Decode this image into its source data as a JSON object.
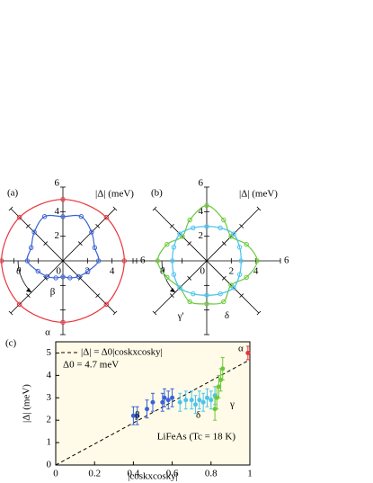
{
  "chart_data": [
    {
      "type": "polar",
      "panel_label": "(a)",
      "axis_label": "|Δ| (meV)",
      "theta_label": "θ",
      "rlim": [
        0,
        6
      ],
      "rticks": [
        0,
        2,
        4,
        6
      ],
      "series": [
        {
          "name": "α",
          "color": "#e8333a",
          "theta": [
            0,
            45,
            90,
            135,
            180,
            225,
            270,
            315
          ],
          "values": [
            5.0,
            5.0,
            5.0,
            5.0,
            5.0,
            5.0,
            5.0,
            5.0
          ]
        },
        {
          "name": "β",
          "color": "#3a62d6",
          "theta": [
            0,
            22.5,
            45,
            67.5,
            90,
            112.5,
            135,
            157.5,
            180,
            202.5,
            225,
            247.5,
            270,
            292.5,
            315,
            337.5
          ],
          "values": [
            2.9,
            2.8,
            3.3,
            3.9,
            3.6,
            3.9,
            3.3,
            2.8,
            2.9,
            2.2,
            1.8,
            1.5,
            1.3,
            1.5,
            1.8,
            2.2
          ]
        }
      ]
    },
    {
      "type": "polar",
      "panel_label": "(b)",
      "axis_label": "|Δ| (meV)",
      "theta_label": "θ",
      "rlim": [
        0,
        6
      ],
      "rticks": [
        0,
        2,
        4,
        6
      ],
      "series": [
        {
          "name": "γ'",
          "color": "#6cc93a",
          "theta": [
            0,
            22.5,
            45,
            67.5,
            90,
            112.5,
            135,
            157.5,
            180,
            202.5,
            225,
            247.5,
            270,
            292.5,
            315,
            337.5
          ],
          "values": [
            4.1,
            3.5,
            2.8,
            3.6,
            4.5,
            3.6,
            2.8,
            3.5,
            4.0,
            3.5,
            3.1,
            3.6,
            3.5,
            3.6,
            2.8,
            3.5
          ]
        },
        {
          "name": "δ",
          "color": "#4cc3ee",
          "theta": [
            0,
            22.5,
            45,
            67.5,
            90,
            112.5,
            135,
            157.5,
            180,
            202.5,
            225,
            247.5,
            270,
            292.5,
            315,
            337.5
          ],
          "values": [
            2.8,
            2.9,
            3.1,
            2.9,
            2.8,
            2.9,
            3.1,
            2.9,
            2.8,
            2.9,
            3.1,
            2.9,
            2.8,
            2.9,
            3.1,
            2.9
          ]
        }
      ]
    },
    {
      "type": "errorscatter",
      "panel_label": "(c)",
      "x_label": "|coskxcosky|",
      "y_label": "|Δ| (meV)",
      "annotation": "LiFeAs (Tc = 18 K)",
      "fit": {
        "label": "|Δ| = Δ0|coskxcosky|",
        "delta0": 4.7,
        "delta0_label": "Δ0 = 4.7 meV"
      },
      "xlim": [
        0,
        1
      ],
      "ylim": [
        0,
        5.5
      ],
      "xticks": [
        0,
        0.2,
        0.4,
        0.6,
        0.8,
        1
      ],
      "yticks": [
        0,
        1,
        2,
        3,
        4,
        5
      ],
      "series": [
        {
          "name": "β",
          "color": "#3a62d6",
          "x": [
            0.4,
            0.42,
            0.47,
            0.5,
            0.55,
            0.56,
            0.58,
            0.6
          ],
          "values": [
            2.2,
            2.2,
            2.5,
            2.8,
            2.8,
            3.0,
            2.9,
            3.0
          ],
          "errors": [
            0.4,
            0.4,
            0.4,
            0.4,
            0.4,
            0.4,
            0.4,
            0.4
          ]
        },
        {
          "name": "δ",
          "color": "#4cc3ee",
          "x": [
            0.64,
            0.67,
            0.7,
            0.72,
            0.74,
            0.76,
            0.78,
            0.8,
            0.82
          ],
          "values": [
            2.8,
            2.9,
            2.9,
            2.7,
            2.9,
            2.8,
            3.0,
            2.9,
            3.1
          ],
          "errors": [
            0.4,
            0.4,
            0.4,
            0.4,
            0.4,
            0.4,
            0.4,
            0.4,
            0.4
          ]
        },
        {
          "name": "γ",
          "color": "#6cc93a",
          "x": [
            0.82,
            0.83,
            0.84,
            0.85,
            0.86
          ],
          "values": [
            2.5,
            3.0,
            3.5,
            3.8,
            4.3
          ],
          "errors": [
            0.5,
            0.5,
            0.5,
            0.5,
            0.5
          ]
        },
        {
          "name": "α",
          "color": "#e8333a",
          "x": [
            0.99
          ],
          "values": [
            5.0
          ],
          "errors": [
            0.3
          ]
        }
      ]
    }
  ]
}
